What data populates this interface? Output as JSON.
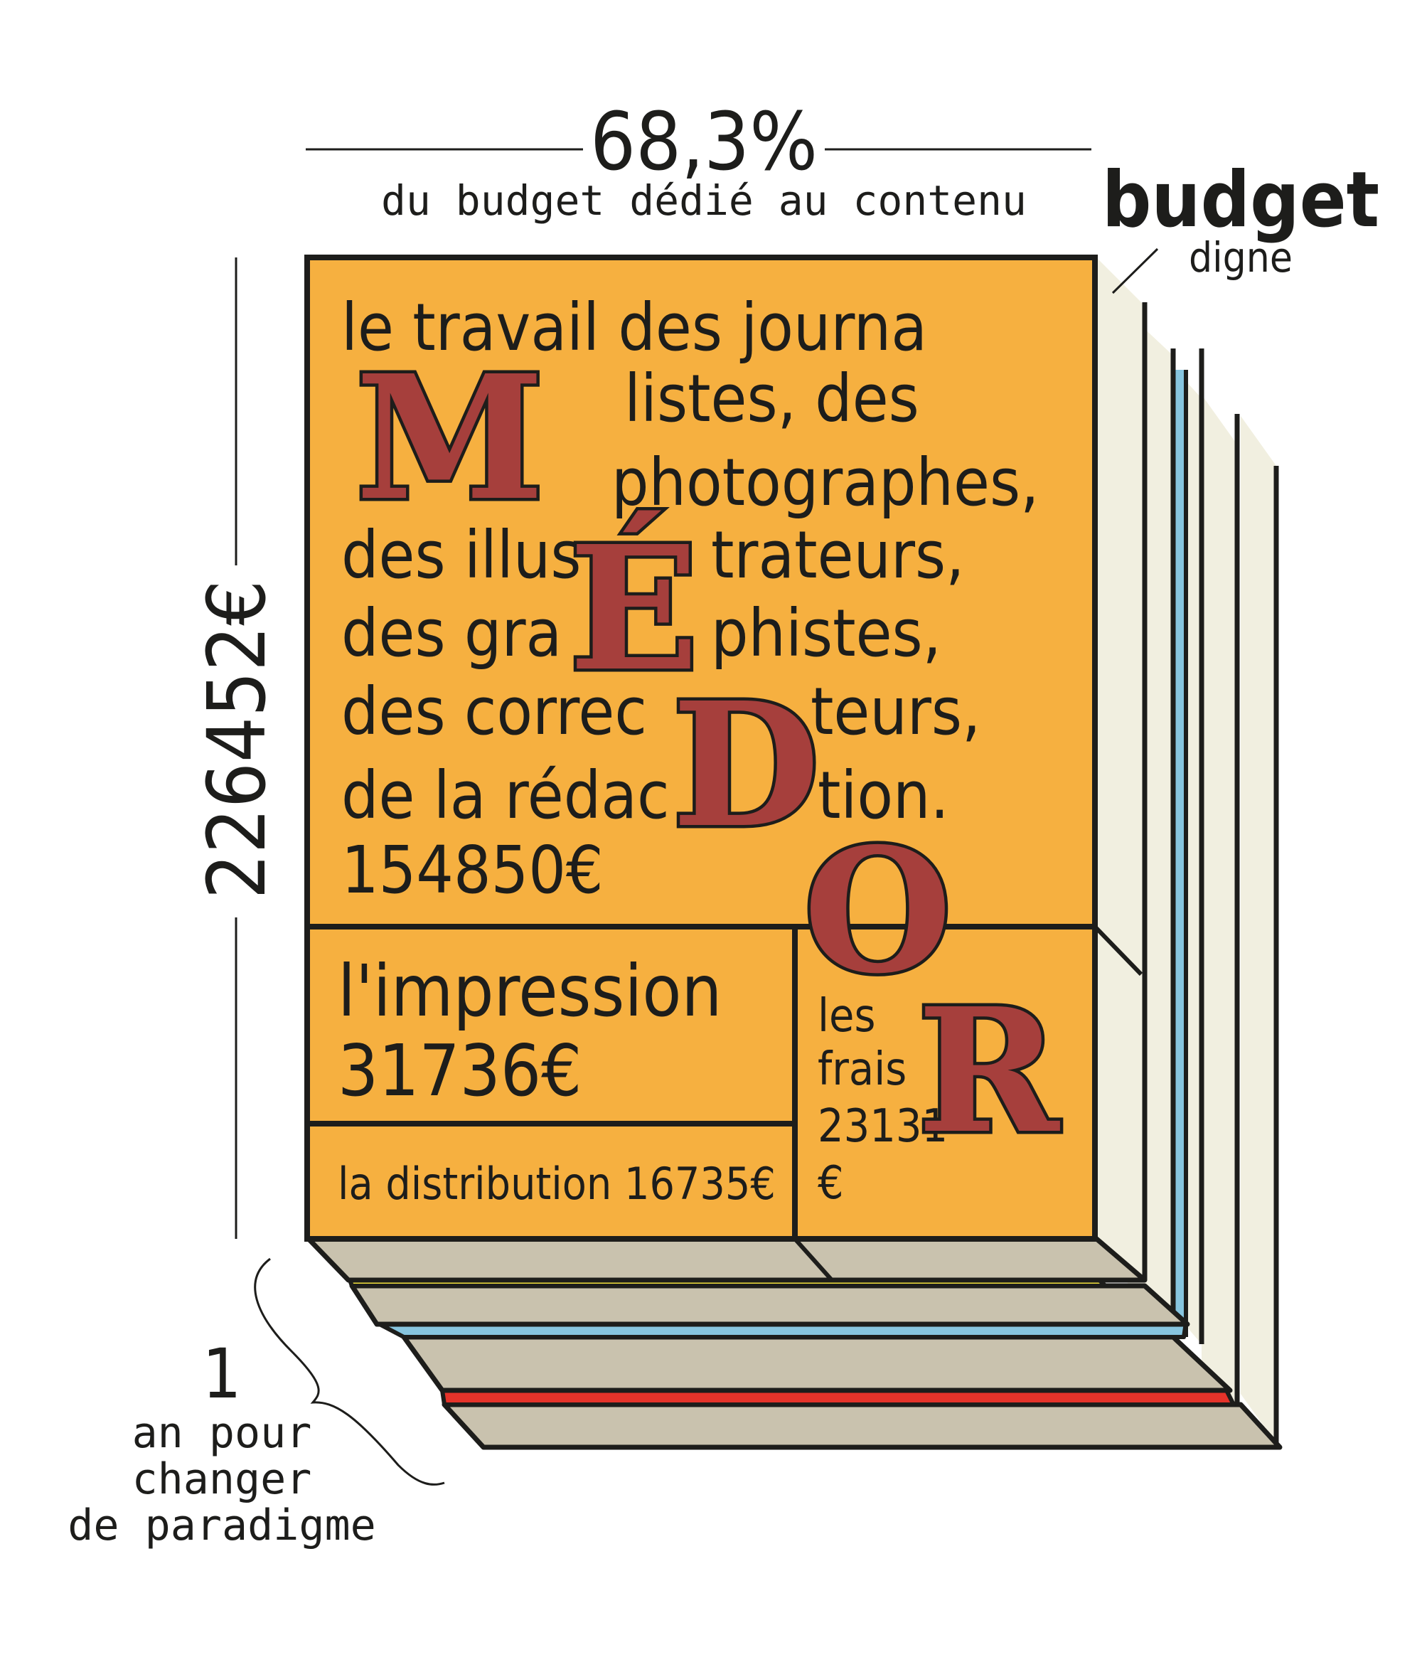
{
  "header": {
    "percent": "68,3%",
    "percent_caption": "du budget dédié au contenu",
    "budget_title": "budget",
    "budget_subtitle": "digne"
  },
  "side_total": "226452€",
  "time_label": {
    "number": "1",
    "line1": "an pour",
    "line2": "changer",
    "line3": "de paradigme"
  },
  "content": {
    "lines": [
      "le travail des journa",
      "listes, des",
      "photographes,",
      "des illus",
      "trateurs,",
      "des gra",
      "phistes,",
      "des correc",
      "teurs,",
      "de la rédac",
      "tion."
    ],
    "amount": "154850€"
  },
  "printing": {
    "label": "l'impression",
    "amount": "31736€"
  },
  "distribution": {
    "label": "la distribution 16735€"
  },
  "fees": {
    "line1": "les",
    "line2": "frais",
    "line3": "23131",
    "line4": "€"
  },
  "logo_letters": [
    "M",
    "É",
    "D",
    "O",
    "R"
  ],
  "colors": {
    "cover": "#f6b040",
    "logo_red": "#a63f3c",
    "page_cream": "#f1efe0",
    "page_bottom": "#c9c2ae",
    "edge_yellow": "#f3e23c",
    "edge_blue": "#87c5df",
    "edge_red": "#e5332a"
  },
  "chart_data": {
    "type": "treemap",
    "total": 226452,
    "currency": "€",
    "share_content_percent": 68.3,
    "segments": [
      {
        "label": "le travail des journalistes, des photographes, des illustrateurs, des graphistes, des correcteurs, de la rédaction",
        "value": 154850
      },
      {
        "label": "l'impression",
        "value": 31736
      },
      {
        "label": "la distribution",
        "value": 16735
      },
      {
        "label": "les frais",
        "value": 23131
      }
    ]
  }
}
